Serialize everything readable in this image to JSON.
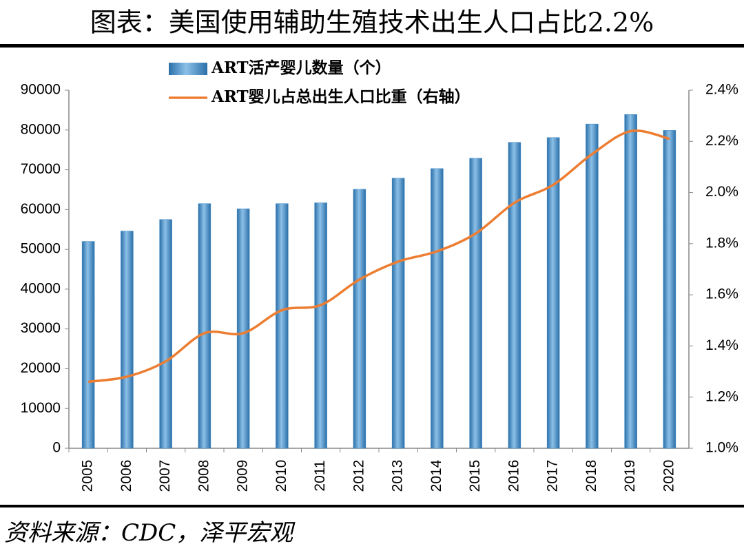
{
  "chart_data": {
    "type": "bar_line",
    "title": "图表：美国使用辅助生殖技术出生人口占比2.2%",
    "source": "资料来源：CDC，泽平宏观",
    "categories": [
      "2005",
      "2006",
      "2007",
      "2008",
      "2009",
      "2010",
      "2011",
      "2012",
      "2013",
      "2014",
      "2015",
      "2016",
      "2017",
      "2018",
      "2019",
      "2020"
    ],
    "series": [
      {
        "name": "ART活产婴儿数量（个）",
        "type": "bar",
        "color": "#3f88c5",
        "values": [
          52000,
          54600,
          57500,
          61500,
          60200,
          61500,
          61700,
          65100,
          67900,
          70300,
          72900,
          76900,
          78100,
          81500,
          83900,
          79900
        ]
      },
      {
        "name": "ART婴儿占总出生人口比重（右轴）",
        "type": "line",
        "color": "#ed7d31",
        "axis": "y2",
        "values": [
          1.26,
          1.28,
          1.34,
          1.45,
          1.45,
          1.54,
          1.56,
          1.66,
          1.73,
          1.77,
          1.84,
          1.96,
          2.03,
          2.15,
          2.24,
          2.21
        ]
      }
    ],
    "ylim": [
      0,
      90000
    ],
    "yticks": [
      0,
      10000,
      20000,
      30000,
      40000,
      50000,
      60000,
      70000,
      80000,
      90000
    ],
    "y2lim": [
      1.0,
      2.4
    ],
    "y2ticks": [
      {
        "value": 1.0,
        "label": "1.0%"
      },
      {
        "value": 1.2,
        "label": "1.2%"
      },
      {
        "value": 1.4,
        "label": "1.4%"
      },
      {
        "value": 1.6,
        "label": "1.6%"
      },
      {
        "value": 1.8,
        "label": "1.8%"
      },
      {
        "value": 2.0,
        "label": "2.0%"
      },
      {
        "value": 2.2,
        "label": "2.2%"
      },
      {
        "value": 2.4,
        "label": "2.4%"
      }
    ]
  }
}
